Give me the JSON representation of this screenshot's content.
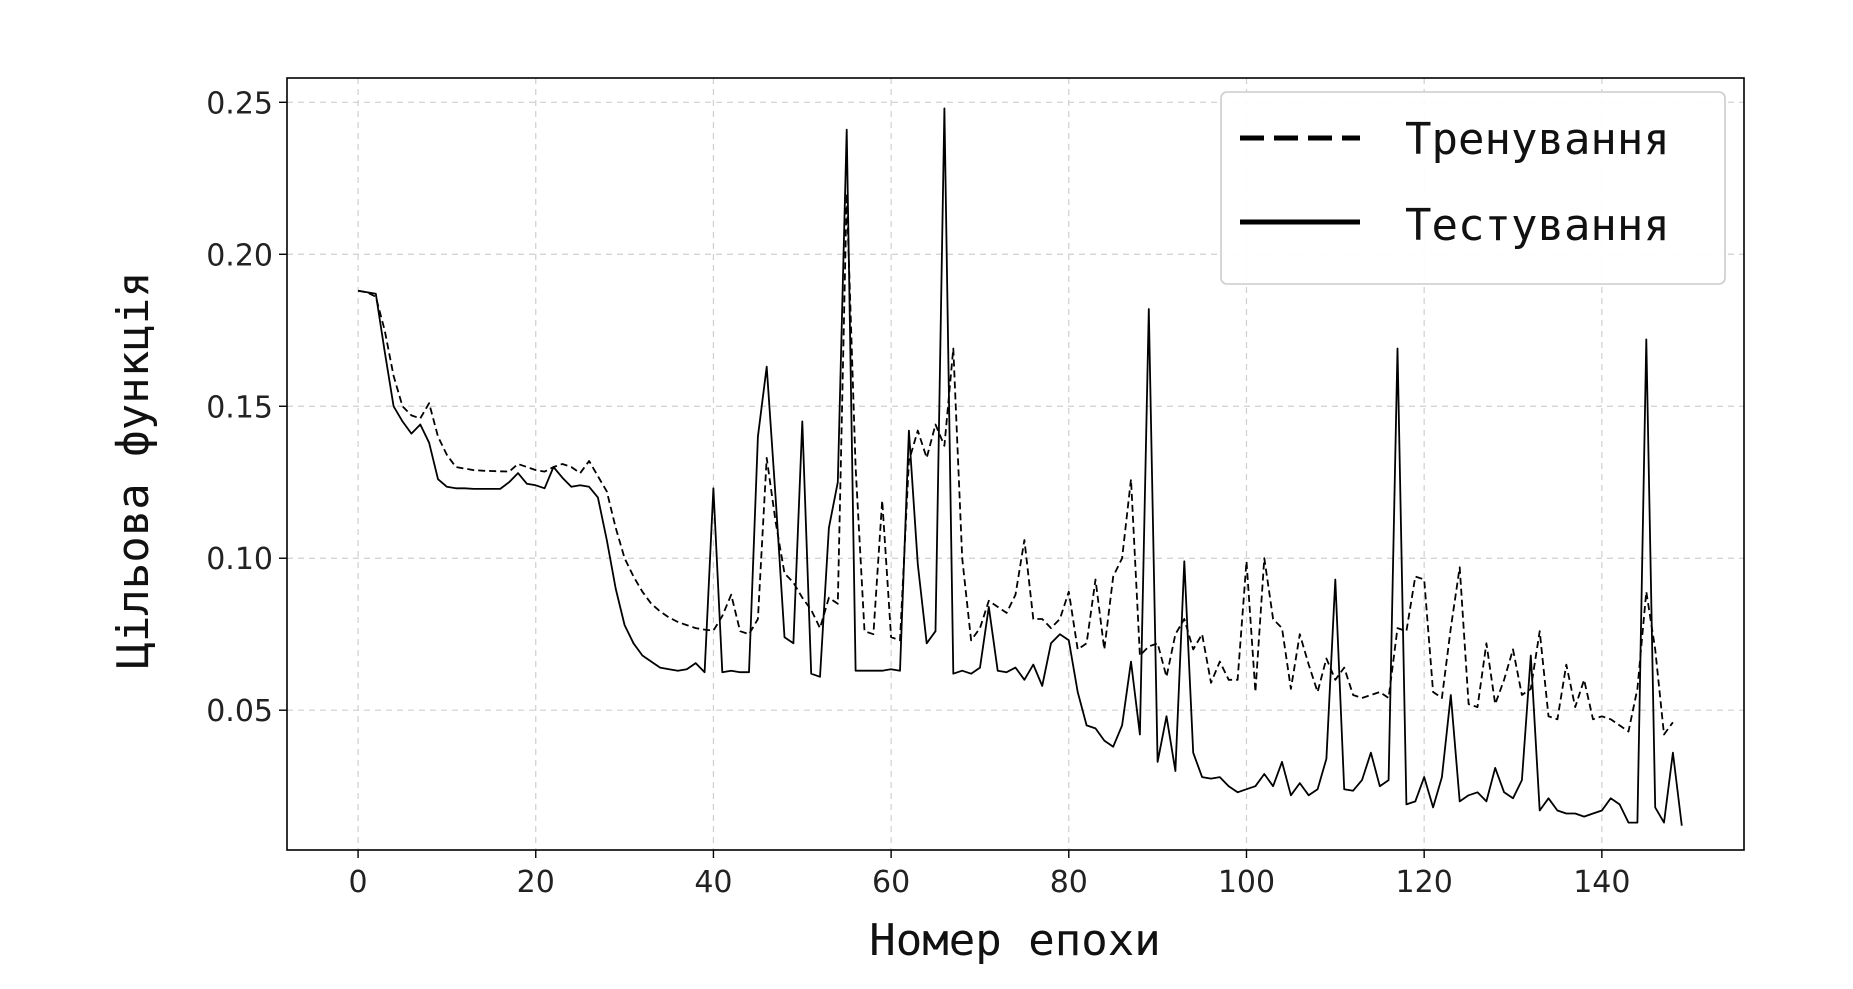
{
  "chart_data": {
    "type": "line",
    "title": "",
    "xlabel": "Номер епохи",
    "ylabel": "Цільова функція",
    "xlim": [
      -8,
      156
    ],
    "ylim": [
      0.004,
      0.258
    ],
    "xticks": [
      0,
      20,
      40,
      60,
      80,
      100,
      120,
      140
    ],
    "xtick_labels": [
      "0",
      "20",
      "40",
      "60",
      "80",
      "100",
      "120",
      "140"
    ],
    "yticks": [
      0.05,
      0.1,
      0.15,
      0.2,
      0.25
    ],
    "ytick_labels": [
      "0.05",
      "0.10",
      "0.15",
      "0.20",
      "0.25"
    ],
    "grid": true,
    "legend_position": "top-right",
    "series": [
      {
        "name": "Тренування",
        "style": "dashed",
        "color": "#000000",
        "values": [
          0.188,
          0.1875,
          0.186,
          0.175,
          0.16,
          0.15,
          0.147,
          0.146,
          0.151,
          0.14,
          0.134,
          0.13,
          0.1295,
          0.129,
          0.1288,
          0.1287,
          0.1286,
          0.1285,
          0.131,
          0.13,
          0.129,
          0.1285,
          0.13,
          0.131,
          0.13,
          0.128,
          0.132,
          0.127,
          0.122,
          0.11,
          0.1,
          0.094,
          0.089,
          0.085,
          0.0825,
          0.0805,
          0.079,
          0.078,
          0.077,
          0.0765,
          0.0762,
          0.081,
          0.088,
          0.076,
          0.075,
          0.08,
          0.133,
          0.112,
          0.095,
          0.092,
          0.087,
          0.083,
          0.077,
          0.087,
          0.085,
          0.22,
          0.13,
          0.076,
          0.075,
          0.119,
          0.074,
          0.073,
          0.132,
          0.142,
          0.133,
          0.144,
          0.137,
          0.169,
          0.1,
          0.073,
          0.077,
          0.086,
          0.084,
          0.082,
          0.088,
          0.106,
          0.08,
          0.08,
          0.077,
          0.08,
          0.089,
          0.07,
          0.072,
          0.093,
          0.07,
          0.094,
          0.1,
          0.126,
          0.068,
          0.071,
          0.072,
          0.061,
          0.075,
          0.08,
          0.07,
          0.075,
          0.059,
          0.066,
          0.06,
          0.06,
          0.099,
          0.056,
          0.1,
          0.08,
          0.077,
          0.057,
          0.075,
          0.065,
          0.056,
          0.067,
          0.06,
          0.064,
          0.055,
          0.054,
          0.055,
          0.056,
          0.054,
          0.077,
          0.076,
          0.094,
          0.093,
          0.056,
          0.054,
          0.077,
          0.097,
          0.052,
          0.051,
          0.072,
          0.052,
          0.06,
          0.07,
          0.055,
          0.057,
          0.076,
          0.048,
          0.047,
          0.065,
          0.051,
          0.06,
          0.047,
          0.048,
          0.047,
          0.045,
          0.043,
          0.057,
          0.089,
          0.07,
          0.042,
          0.046
        ]
      },
      {
        "name": "Тестування",
        "style": "solid",
        "color": "#000000",
        "values": [
          0.188,
          0.1875,
          0.187,
          0.168,
          0.15,
          0.145,
          0.141,
          0.144,
          0.138,
          0.126,
          0.1235,
          0.123,
          0.123,
          0.1228,
          0.1228,
          0.1228,
          0.1228,
          0.125,
          0.128,
          0.1245,
          0.124,
          0.123,
          0.13,
          0.1265,
          0.1235,
          0.124,
          0.1235,
          0.12,
          0.106,
          0.09,
          0.078,
          0.072,
          0.068,
          0.066,
          0.064,
          0.0635,
          0.063,
          0.0635,
          0.0655,
          0.0625,
          0.123,
          0.0625,
          0.063,
          0.0625,
          0.0625,
          0.14,
          0.163,
          0.12,
          0.074,
          0.072,
          0.145,
          0.062,
          0.061,
          0.11,
          0.125,
          0.241,
          0.063,
          0.063,
          0.063,
          0.063,
          0.0635,
          0.063,
          0.142,
          0.098,
          0.072,
          0.076,
          0.248,
          0.062,
          0.063,
          0.062,
          0.064,
          0.084,
          0.063,
          0.0625,
          0.064,
          0.06,
          0.065,
          0.058,
          0.072,
          0.075,
          0.073,
          0.056,
          0.045,
          0.044,
          0.04,
          0.038,
          0.045,
          0.066,
          0.042,
          0.182,
          0.033,
          0.048,
          0.03,
          0.099,
          0.036,
          0.028,
          0.0275,
          0.028,
          0.025,
          0.023,
          0.024,
          0.025,
          0.029,
          0.025,
          0.033,
          0.022,
          0.026,
          0.022,
          0.024,
          0.034,
          0.093,
          0.024,
          0.0235,
          0.027,
          0.036,
          0.025,
          0.027,
          0.169,
          0.019,
          0.02,
          0.028,
          0.018,
          0.028,
          0.055,
          0.02,
          0.022,
          0.023,
          0.02,
          0.031,
          0.023,
          0.021,
          0.027,
          0.068,
          0.017,
          0.021,
          0.017,
          0.016,
          0.016,
          0.015,
          0.016,
          0.017,
          0.021,
          0.019,
          0.013,
          0.013,
          0.172,
          0.018,
          0.013,
          0.036,
          0.012
        ]
      }
    ]
  }
}
